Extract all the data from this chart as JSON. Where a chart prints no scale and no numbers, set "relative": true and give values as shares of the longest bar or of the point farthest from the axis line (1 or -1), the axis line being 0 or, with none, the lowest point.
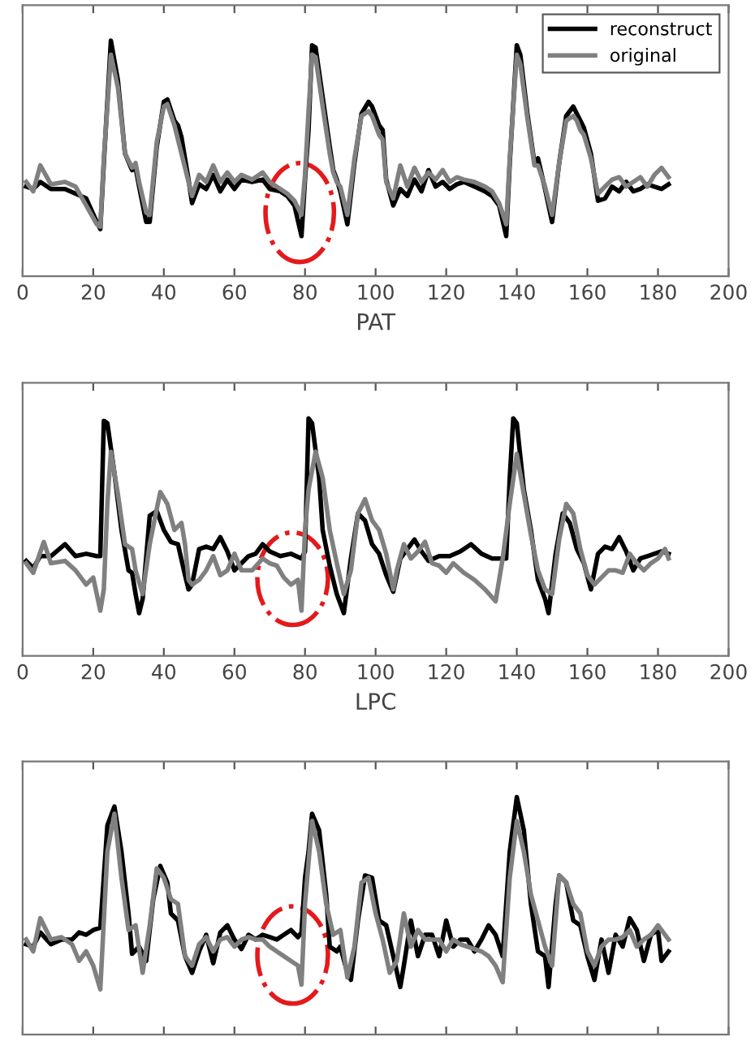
{
  "chart_data": [
    {
      "type": "line",
      "relative": true,
      "xlabel": "PAT",
      "xlim": [
        0,
        200
      ],
      "xticks": [
        0,
        20,
        40,
        60,
        80,
        100,
        120,
        140,
        160,
        180,
        200
      ],
      "grid": false,
      "legend": "top right",
      "tick_labels": "x",
      "line_style": "solid",
      "marker": "none",
      "x": [
        1,
        3,
        5,
        8,
        12,
        15,
        18,
        21,
        22,
        23,
        25,
        27,
        29,
        31,
        32,
        33,
        35,
        36,
        38,
        40,
        41,
        43,
        44,
        45,
        47,
        48,
        50,
        52,
        54,
        56,
        58,
        60,
        62,
        65,
        68,
        70,
        73,
        75,
        77,
        79,
        80,
        81,
        82,
        83,
        85,
        87,
        88,
        89,
        90,
        92,
        94,
        96,
        98,
        99,
        101,
        102,
        103,
        105,
        107,
        109,
        111,
        113,
        115,
        117,
        119,
        121,
        123,
        125,
        128,
        131,
        133,
        135,
        137,
        138,
        140,
        141,
        143,
        145,
        146,
        148,
        150,
        152,
        154,
        156,
        157,
        158,
        159,
        161,
        163,
        165,
        167,
        169,
        171,
        173,
        175,
        177,
        179,
        181,
        183
      ],
      "series": [
        {
          "name": "reconstruct",
          "color": "#000000",
          "values": [
            0.38,
            0.37,
            0.4,
            0.37,
            0.37,
            0.35,
            0.33,
            0.23,
            0.2,
            0.48,
            1.0,
            0.83,
            0.52,
            0.45,
            0.46,
            0.38,
            0.23,
            0.23,
            0.55,
            0.74,
            0.75,
            0.66,
            0.64,
            0.59,
            0.41,
            0.31,
            0.39,
            0.37,
            0.43,
            0.36,
            0.41,
            0.37,
            0.41,
            0.4,
            0.41,
            0.37,
            0.36,
            0.34,
            0.3,
            0.17,
            0.41,
            0.62,
            0.98,
            0.97,
            0.76,
            0.55,
            0.45,
            0.41,
            0.36,
            0.22,
            0.48,
            0.69,
            0.74,
            0.72,
            0.64,
            0.62,
            0.41,
            0.3,
            0.37,
            0.34,
            0.41,
            0.36,
            0.45,
            0.38,
            0.4,
            0.37,
            0.39,
            0.4,
            0.38,
            0.36,
            0.34,
            0.3,
            0.17,
            0.48,
            0.98,
            0.94,
            0.69,
            0.48,
            0.5,
            0.37,
            0.23,
            0.48,
            0.68,
            0.72,
            0.69,
            0.66,
            0.63,
            0.52,
            0.32,
            0.33,
            0.38,
            0.36,
            0.4,
            0.36,
            0.37,
            0.39,
            0.38,
            0.37,
            0.39
          ]
        },
        {
          "name": "original",
          "color": "#808080",
          "values": [
            0.4,
            0.36,
            0.47,
            0.39,
            0.4,
            0.38,
            0.3,
            0.22,
            0.21,
            0.5,
            0.94,
            0.8,
            0.52,
            0.46,
            0.48,
            0.4,
            0.27,
            0.26,
            0.57,
            0.72,
            0.73,
            0.64,
            0.58,
            0.52,
            0.4,
            0.34,
            0.43,
            0.4,
            0.47,
            0.4,
            0.44,
            0.4,
            0.43,
            0.41,
            0.44,
            0.4,
            0.37,
            0.35,
            0.32,
            0.26,
            0.43,
            0.7,
            0.94,
            0.93,
            0.72,
            0.52,
            0.44,
            0.4,
            0.38,
            0.26,
            0.5,
            0.68,
            0.7,
            0.68,
            0.6,
            0.58,
            0.4,
            0.33,
            0.47,
            0.38,
            0.46,
            0.4,
            0.44,
            0.41,
            0.45,
            0.4,
            0.42,
            0.41,
            0.4,
            0.38,
            0.36,
            0.31,
            0.22,
            0.5,
            0.94,
            0.9,
            0.67,
            0.47,
            0.47,
            0.38,
            0.26,
            0.48,
            0.66,
            0.68,
            0.66,
            0.62,
            0.6,
            0.5,
            0.35,
            0.38,
            0.41,
            0.42,
            0.38,
            0.4,
            0.42,
            0.38,
            0.43,
            0.46,
            0.42
          ]
        }
      ]
    },
    {
      "type": "line",
      "relative": true,
      "xlabel": "LPC",
      "xlim": [
        0,
        200
      ],
      "xticks": [
        0,
        20,
        40,
        60,
        80,
        100,
        120,
        140,
        160,
        180,
        200
      ],
      "grid": false,
      "tick_labels": "x",
      "line_style": "solid",
      "marker": "none",
      "series": [
        {
          "color": "#000000",
          "x": [
            1,
            3,
            5,
            8,
            12,
            15,
            18,
            21,
            22,
            23,
            24,
            26,
            28,
            30,
            31,
            32,
            33,
            34,
            36,
            38,
            40,
            42,
            44,
            46,
            47,
            48,
            50,
            52,
            54,
            56,
            58,
            60,
            62,
            64,
            66,
            68,
            70,
            73,
            76,
            79,
            80,
            81,
            82,
            84,
            85,
            87,
            89,
            91,
            93,
            95,
            97,
            99,
            101,
            103,
            105,
            107,
            109,
            111,
            113,
            115,
            118,
            121,
            124,
            127,
            130,
            133,
            137,
            138,
            139,
            140,
            142,
            144,
            146,
            148,
            149,
            151,
            153,
            155,
            157,
            159,
            161,
            163,
            165,
            167,
            169,
            171,
            173,
            175,
            177,
            179,
            181,
            183
          ],
          "values": [
            0.4,
            0.37,
            0.42,
            0.42,
            0.47,
            0.42,
            0.43,
            0.42,
            0.42,
            0.99,
            0.98,
            0.77,
            0.53,
            0.36,
            0.35,
            0.26,
            0.18,
            0.24,
            0.59,
            0.61,
            0.53,
            0.48,
            0.47,
            0.34,
            0.28,
            0.3,
            0.45,
            0.46,
            0.45,
            0.5,
            0.44,
            0.36,
            0.39,
            0.42,
            0.43,
            0.47,
            0.44,
            0.42,
            0.43,
            0.41,
            0.44,
            1.0,
            0.98,
            0.75,
            0.53,
            0.38,
            0.26,
            0.18,
            0.41,
            0.6,
            0.57,
            0.47,
            0.43,
            0.34,
            0.27,
            0.41,
            0.45,
            0.49,
            0.44,
            0.4,
            0.42,
            0.42,
            0.44,
            0.47,
            0.43,
            0.41,
            0.41,
            0.75,
            1.0,
            0.98,
            0.7,
            0.53,
            0.32,
            0.24,
            0.18,
            0.43,
            0.6,
            0.56,
            0.45,
            0.39,
            0.28,
            0.43,
            0.46,
            0.45,
            0.5,
            0.44,
            0.36,
            0.41,
            0.42,
            0.43,
            0.44,
            0.43
          ]
        },
        {
          "color": "#808080",
          "x": [
            1,
            3,
            6,
            8,
            12,
            15,
            18,
            20,
            22,
            23,
            24,
            25,
            27,
            29,
            31,
            32,
            34,
            36,
            38,
            39,
            41,
            43,
            45,
            46,
            47,
            48,
            50,
            52,
            54,
            56,
            58,
            60,
            62,
            65,
            68,
            70,
            72,
            74,
            76,
            78,
            79,
            80,
            81,
            83,
            85,
            87,
            89,
            91,
            93,
            95,
            97,
            99,
            101,
            103,
            105,
            106,
            108,
            110,
            112,
            114,
            116,
            118,
            120,
            122,
            125,
            128,
            131,
            134,
            136,
            138,
            140,
            142,
            144,
            146,
            148,
            150,
            152,
            154,
            156,
            158,
            160,
            162,
            164,
            166,
            168,
            170,
            172,
            174,
            176,
            178,
            180,
            182,
            183
          ],
          "values": [
            0.39,
            0.35,
            0.48,
            0.39,
            0.4,
            0.36,
            0.3,
            0.33,
            0.19,
            0.28,
            0.64,
            0.86,
            0.68,
            0.47,
            0.45,
            0.36,
            0.26,
            0.47,
            0.62,
            0.69,
            0.64,
            0.53,
            0.56,
            0.47,
            0.32,
            0.3,
            0.32,
            0.36,
            0.42,
            0.34,
            0.36,
            0.43,
            0.36,
            0.36,
            0.41,
            0.39,
            0.38,
            0.33,
            0.3,
            0.32,
            0.19,
            0.53,
            0.7,
            0.86,
            0.75,
            0.53,
            0.39,
            0.26,
            0.36,
            0.6,
            0.66,
            0.57,
            0.53,
            0.43,
            0.28,
            0.36,
            0.47,
            0.41,
            0.44,
            0.48,
            0.39,
            0.38,
            0.35,
            0.39,
            0.35,
            0.32,
            0.28,
            0.23,
            0.41,
            0.64,
            0.85,
            0.68,
            0.51,
            0.36,
            0.28,
            0.26,
            0.49,
            0.64,
            0.6,
            0.45,
            0.34,
            0.3,
            0.33,
            0.36,
            0.36,
            0.35,
            0.43,
            0.39,
            0.36,
            0.39,
            0.41,
            0.45,
            0.41
          ]
        }
      ]
    },
    {
      "type": "line",
      "relative": true,
      "xlim": [
        0,
        200
      ],
      "xticks": [
        0,
        20,
        40,
        60,
        80,
        100,
        120,
        140,
        160,
        180,
        200
      ],
      "grid": false,
      "tick_labels": false,
      "line_style": "solid",
      "marker": "none",
      "series": [
        {
          "color": "#000000",
          "x": [
            1,
            3,
            5,
            8,
            11,
            14,
            16,
            18,
            20,
            22,
            24,
            26,
            28,
            30,
            31,
            33,
            35,
            37,
            39,
            41,
            42,
            44,
            46,
            48,
            50,
            52,
            54,
            56,
            58,
            60,
            62,
            64,
            66,
            68,
            70,
            72,
            74,
            76,
            78,
            79,
            80,
            81,
            82,
            84,
            86,
            87,
            89,
            90,
            92,
            93,
            95,
            97,
            99,
            101,
            103,
            105,
            107,
            108,
            110,
            112,
            114,
            116,
            118,
            120,
            122,
            124,
            126,
            128,
            130,
            132,
            134,
            136,
            138,
            140,
            142,
            144,
            146,
            148,
            149,
            151,
            152,
            154,
            156,
            158,
            160,
            162,
            164,
            166,
            168,
            170,
            172,
            174,
            176,
            178,
            180,
            181,
            183
          ],
          "values": [
            0.38,
            0.37,
            0.43,
            0.38,
            0.4,
            0.4,
            0.43,
            0.42,
            0.44,
            0.45,
            0.88,
            0.96,
            0.77,
            0.51,
            0.34,
            0.37,
            0.31,
            0.57,
            0.71,
            0.64,
            0.51,
            0.48,
            0.33,
            0.26,
            0.35,
            0.42,
            0.3,
            0.43,
            0.46,
            0.4,
            0.36,
            0.42,
            0.4,
            0.42,
            0.41,
            0.4,
            0.42,
            0.44,
            0.41,
            0.43,
            0.66,
            0.77,
            0.93,
            0.86,
            0.59,
            0.37,
            0.35,
            0.37,
            0.26,
            0.23,
            0.48,
            0.67,
            0.66,
            0.48,
            0.46,
            0.33,
            0.2,
            0.29,
            0.48,
            0.33,
            0.42,
            0.42,
            0.33,
            0.48,
            0.37,
            0.4,
            0.4,
            0.35,
            0.4,
            0.46,
            0.42,
            0.33,
            0.77,
            1.0,
            0.86,
            0.55,
            0.35,
            0.33,
            0.2,
            0.55,
            0.67,
            0.64,
            0.48,
            0.46,
            0.33,
            0.23,
            0.4,
            0.26,
            0.42,
            0.37,
            0.49,
            0.44,
            0.31,
            0.42,
            0.44,
            0.31,
            0.35
          ]
        },
        {
          "color": "#808080",
          "x": [
            1,
            3,
            5,
            8,
            11,
            14,
            16,
            18,
            20,
            22,
            24,
            26,
            28,
            30,
            32,
            34,
            36,
            38,
            40,
            42,
            44,
            46,
            48,
            50,
            52,
            54,
            56,
            58,
            60,
            62,
            64,
            66,
            68,
            70,
            72,
            74,
            76,
            78,
            79,
            80,
            82,
            84,
            86,
            88,
            90,
            92,
            94,
            96,
            98,
            100,
            102,
            104,
            106,
            108,
            110,
            112,
            114,
            116,
            118,
            120,
            122,
            124,
            126,
            128,
            130,
            132,
            134,
            136,
            138,
            140,
            142,
            144,
            146,
            148,
            150,
            152,
            154,
            156,
            158,
            160,
            162,
            164,
            166,
            168,
            170,
            172,
            174,
            176,
            178,
            180,
            182,
            183
          ],
          "values": [
            0.4,
            0.35,
            0.49,
            0.4,
            0.41,
            0.38,
            0.31,
            0.35,
            0.29,
            0.19,
            0.77,
            0.93,
            0.66,
            0.44,
            0.46,
            0.26,
            0.46,
            0.7,
            0.66,
            0.57,
            0.55,
            0.33,
            0.29,
            0.38,
            0.41,
            0.35,
            0.4,
            0.41,
            0.37,
            0.4,
            0.41,
            0.4,
            0.4,
            0.37,
            0.35,
            0.33,
            0.31,
            0.29,
            0.21,
            0.55,
            0.9,
            0.77,
            0.55,
            0.42,
            0.44,
            0.24,
            0.37,
            0.64,
            0.66,
            0.51,
            0.4,
            0.26,
            0.31,
            0.51,
            0.37,
            0.44,
            0.4,
            0.4,
            0.4,
            0.35,
            0.4,
            0.38,
            0.37,
            0.36,
            0.35,
            0.33,
            0.29,
            0.22,
            0.66,
            0.9,
            0.77,
            0.59,
            0.48,
            0.37,
            0.29,
            0.67,
            0.64,
            0.55,
            0.51,
            0.35,
            0.29,
            0.37,
            0.4,
            0.4,
            0.41,
            0.44,
            0.37,
            0.4,
            0.42,
            0.46,
            0.42,
            0.4
          ]
        }
      ]
    }
  ]
}
